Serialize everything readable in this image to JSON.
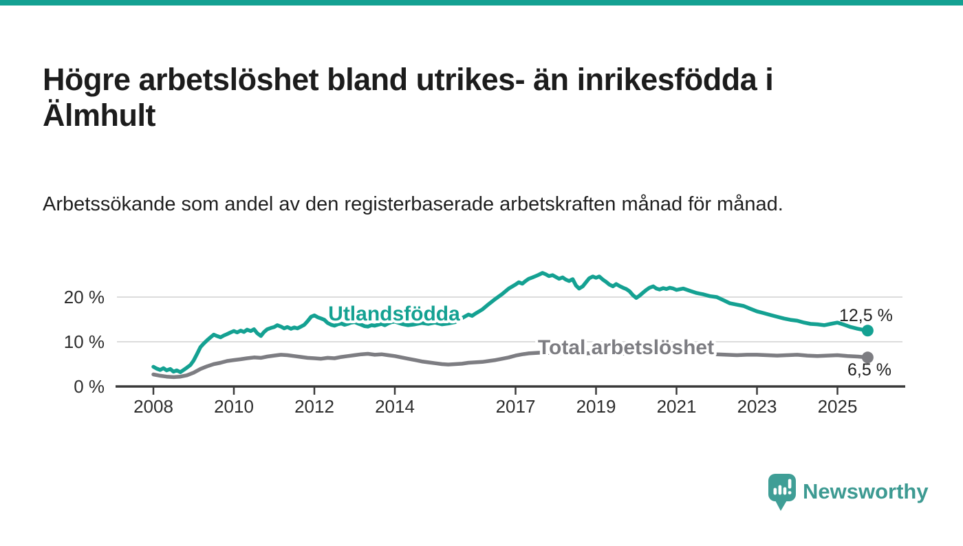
{
  "page": {
    "title": "Högre arbetslöshet bland utrikes- än inrikesfödda i Älmhult",
    "subtitle": "Arbetssökande som andel av den registerbaserade arbetskraften månad för månad."
  },
  "branding": {
    "logo_text": "Newsworthy",
    "logo_icon": "speech-bubble-bar-chart"
  },
  "colors": {
    "accent_teal": "#14a192",
    "series_foreign_born": "#14a192",
    "series_total": "#7d7d82",
    "logo_teal": "#3f9e96",
    "grid": "#dcdcdc",
    "axis": "#3a3a3a"
  },
  "chart_data": {
    "type": "line",
    "title": "Högre arbetslöshet bland utrikes- än inrikesfödda i Älmhult",
    "subtitle": "Arbetssökande som andel av den registerbaserade arbetskraften månad för månad.",
    "xlabel": "",
    "ylabel": "",
    "unit": "%",
    "grid": true,
    "x_axis": {
      "ticks": [
        2008,
        2010,
        2012,
        2014,
        2017,
        2019,
        2021,
        2023,
        2025
      ],
      "range": [
        2007.9,
        2026.5
      ]
    },
    "y_axis": {
      "ticks": [
        0,
        10,
        20
      ],
      "tick_labels": [
        "0 %",
        "10 %",
        "20 %"
      ],
      "range": [
        0,
        27
      ]
    },
    "series": [
      {
        "name": "Utlandsfödda",
        "color": "#14a192",
        "end_value": 12.5,
        "end_label": "12,5 %",
        "points": [
          [
            2008.0,
            4.4
          ],
          [
            2008.08,
            4.0
          ],
          [
            2008.17,
            3.7
          ],
          [
            2008.25,
            4.1
          ],
          [
            2008.33,
            3.6
          ],
          [
            2008.42,
            3.9
          ],
          [
            2008.5,
            3.3
          ],
          [
            2008.58,
            3.6
          ],
          [
            2008.67,
            3.2
          ],
          [
            2008.75,
            3.7
          ],
          [
            2008.83,
            4.2
          ],
          [
            2008.92,
            4.8
          ],
          [
            2009.0,
            5.8
          ],
          [
            2009.08,
            7.2
          ],
          [
            2009.17,
            8.8
          ],
          [
            2009.25,
            9.6
          ],
          [
            2009.33,
            10.3
          ],
          [
            2009.42,
            11.0
          ],
          [
            2009.5,
            11.6
          ],
          [
            2009.58,
            11.3
          ],
          [
            2009.67,
            11.0
          ],
          [
            2009.75,
            11.4
          ],
          [
            2009.83,
            11.7
          ],
          [
            2009.92,
            12.1
          ],
          [
            2010.0,
            12.4
          ],
          [
            2010.08,
            12.1
          ],
          [
            2010.17,
            12.5
          ],
          [
            2010.25,
            12.2
          ],
          [
            2010.33,
            12.7
          ],
          [
            2010.42,
            12.4
          ],
          [
            2010.5,
            12.8
          ],
          [
            2010.58,
            11.9
          ],
          [
            2010.67,
            11.3
          ],
          [
            2010.75,
            12.2
          ],
          [
            2010.83,
            12.8
          ],
          [
            2010.92,
            13.1
          ],
          [
            2011.0,
            13.3
          ],
          [
            2011.08,
            13.7
          ],
          [
            2011.17,
            13.4
          ],
          [
            2011.25,
            13.0
          ],
          [
            2011.33,
            13.3
          ],
          [
            2011.42,
            12.9
          ],
          [
            2011.5,
            13.2
          ],
          [
            2011.58,
            13.0
          ],
          [
            2011.67,
            13.4
          ],
          [
            2011.75,
            13.8
          ],
          [
            2011.83,
            14.6
          ],
          [
            2011.92,
            15.6
          ],
          [
            2012.0,
            15.9
          ],
          [
            2012.08,
            15.5
          ],
          [
            2012.17,
            15.2
          ],
          [
            2012.25,
            14.9
          ],
          [
            2012.33,
            14.2
          ],
          [
            2012.42,
            13.8
          ],
          [
            2012.5,
            13.6
          ],
          [
            2012.58,
            13.9
          ],
          [
            2012.67,
            14.1
          ],
          [
            2012.75,
            13.8
          ],
          [
            2012.83,
            14.0
          ],
          [
            2012.92,
            14.3
          ],
          [
            2013.0,
            14.4
          ],
          [
            2013.08,
            14.1
          ],
          [
            2013.17,
            13.8
          ],
          [
            2013.25,
            13.5
          ],
          [
            2013.33,
            13.4
          ],
          [
            2013.42,
            13.7
          ],
          [
            2013.5,
            13.6
          ],
          [
            2013.58,
            13.8
          ],
          [
            2013.67,
            14.0
          ],
          [
            2013.75,
            13.7
          ],
          [
            2013.83,
            14.1
          ],
          [
            2013.92,
            14.4
          ],
          [
            2014.0,
            14.5
          ],
          [
            2014.17,
            14.0
          ],
          [
            2014.33,
            13.7
          ],
          [
            2014.5,
            13.9
          ],
          [
            2014.67,
            14.2
          ],
          [
            2014.83,
            14.0
          ],
          [
            2015.0,
            14.3
          ],
          [
            2015.17,
            13.9
          ],
          [
            2015.33,
            14.1
          ],
          [
            2015.5,
            14.4
          ],
          [
            2015.67,
            15.3
          ],
          [
            2015.83,
            16.1
          ],
          [
            2015.92,
            15.8
          ],
          [
            2016.0,
            16.3
          ],
          [
            2016.17,
            17.2
          ],
          [
            2016.33,
            18.4
          ],
          [
            2016.5,
            19.6
          ],
          [
            2016.67,
            20.7
          ],
          [
            2016.83,
            21.9
          ],
          [
            2017.0,
            22.8
          ],
          [
            2017.08,
            23.3
          ],
          [
            2017.17,
            23.0
          ],
          [
            2017.25,
            23.6
          ],
          [
            2017.33,
            24.1
          ],
          [
            2017.42,
            24.4
          ],
          [
            2017.5,
            24.7
          ],
          [
            2017.58,
            25.0
          ],
          [
            2017.67,
            25.4
          ],
          [
            2017.75,
            25.1
          ],
          [
            2017.83,
            24.7
          ],
          [
            2017.92,
            24.9
          ],
          [
            2018.0,
            24.5
          ],
          [
            2018.08,
            24.1
          ],
          [
            2018.17,
            24.4
          ],
          [
            2018.25,
            23.9
          ],
          [
            2018.33,
            23.6
          ],
          [
            2018.42,
            24.0
          ],
          [
            2018.5,
            22.6
          ],
          [
            2018.58,
            21.9
          ],
          [
            2018.67,
            22.4
          ],
          [
            2018.75,
            23.3
          ],
          [
            2018.83,
            24.2
          ],
          [
            2018.92,
            24.6
          ],
          [
            2019.0,
            24.3
          ],
          [
            2019.08,
            24.6
          ],
          [
            2019.17,
            23.9
          ],
          [
            2019.25,
            23.4
          ],
          [
            2019.33,
            22.8
          ],
          [
            2019.42,
            22.4
          ],
          [
            2019.5,
            22.9
          ],
          [
            2019.58,
            22.5
          ],
          [
            2019.67,
            22.1
          ],
          [
            2019.75,
            21.8
          ],
          [
            2019.83,
            21.3
          ],
          [
            2019.92,
            20.4
          ],
          [
            2020.0,
            19.8
          ],
          [
            2020.08,
            20.3
          ],
          [
            2020.17,
            21.0
          ],
          [
            2020.25,
            21.6
          ],
          [
            2020.33,
            22.1
          ],
          [
            2020.42,
            22.4
          ],
          [
            2020.5,
            21.9
          ],
          [
            2020.58,
            21.7
          ],
          [
            2020.67,
            22.0
          ],
          [
            2020.75,
            21.8
          ],
          [
            2020.83,
            22.1
          ],
          [
            2020.92,
            21.9
          ],
          [
            2021.0,
            21.6
          ],
          [
            2021.17,
            21.9
          ],
          [
            2021.33,
            21.4
          ],
          [
            2021.5,
            20.9
          ],
          [
            2021.67,
            20.6
          ],
          [
            2021.83,
            20.2
          ],
          [
            2022.0,
            20.0
          ],
          [
            2022.17,
            19.3
          ],
          [
            2022.33,
            18.6
          ],
          [
            2022.5,
            18.3
          ],
          [
            2022.67,
            18.0
          ],
          [
            2022.83,
            17.4
          ],
          [
            2023.0,
            16.8
          ],
          [
            2023.17,
            16.4
          ],
          [
            2023.33,
            16.0
          ],
          [
            2023.5,
            15.6
          ],
          [
            2023.67,
            15.2
          ],
          [
            2023.83,
            14.9
          ],
          [
            2024.0,
            14.7
          ],
          [
            2024.17,
            14.3
          ],
          [
            2024.33,
            14.0
          ],
          [
            2024.5,
            13.9
          ],
          [
            2024.67,
            13.7
          ],
          [
            2024.83,
            14.0
          ],
          [
            2025.0,
            14.3
          ],
          [
            2025.17,
            13.8
          ],
          [
            2025.33,
            13.3
          ],
          [
            2025.5,
            12.9
          ],
          [
            2025.67,
            12.6
          ],
          [
            2025.75,
            12.5
          ]
        ]
      },
      {
        "name": "Total arbetslöshet",
        "color": "#7d7d82",
        "end_value": 6.5,
        "end_label": "6,5 %",
        "points": [
          [
            2008.0,
            2.7
          ],
          [
            2008.17,
            2.4
          ],
          [
            2008.33,
            2.2
          ],
          [
            2008.5,
            2.1
          ],
          [
            2008.67,
            2.2
          ],
          [
            2008.83,
            2.5
          ],
          [
            2009.0,
            3.1
          ],
          [
            2009.17,
            3.9
          ],
          [
            2009.33,
            4.5
          ],
          [
            2009.5,
            5.0
          ],
          [
            2009.67,
            5.3
          ],
          [
            2009.83,
            5.7
          ],
          [
            2010.0,
            5.9
          ],
          [
            2010.17,
            6.1
          ],
          [
            2010.33,
            6.3
          ],
          [
            2010.5,
            6.5
          ],
          [
            2010.67,
            6.4
          ],
          [
            2010.83,
            6.7
          ],
          [
            2011.0,
            6.9
          ],
          [
            2011.17,
            7.1
          ],
          [
            2011.33,
            7.0
          ],
          [
            2011.5,
            6.8
          ],
          [
            2011.67,
            6.6
          ],
          [
            2011.83,
            6.4
          ],
          [
            2012.0,
            6.3
          ],
          [
            2012.17,
            6.2
          ],
          [
            2012.33,
            6.4
          ],
          [
            2012.5,
            6.3
          ],
          [
            2012.67,
            6.6
          ],
          [
            2012.83,
            6.8
          ],
          [
            2013.0,
            7.0
          ],
          [
            2013.17,
            7.2
          ],
          [
            2013.33,
            7.3
          ],
          [
            2013.5,
            7.1
          ],
          [
            2013.67,
            7.2
          ],
          [
            2013.83,
            7.0
          ],
          [
            2014.0,
            6.8
          ],
          [
            2014.17,
            6.5
          ],
          [
            2014.33,
            6.2
          ],
          [
            2014.5,
            5.9
          ],
          [
            2014.67,
            5.6
          ],
          [
            2014.83,
            5.4
          ],
          [
            2015.0,
            5.2
          ],
          [
            2015.17,
            5.0
          ],
          [
            2015.33,
            4.9
          ],
          [
            2015.5,
            5.0
          ],
          [
            2015.67,
            5.1
          ],
          [
            2015.83,
            5.3
          ],
          [
            2016.0,
            5.4
          ],
          [
            2016.17,
            5.5
          ],
          [
            2016.33,
            5.7
          ],
          [
            2016.5,
            5.9
          ],
          [
            2016.67,
            6.2
          ],
          [
            2016.83,
            6.5
          ],
          [
            2017.0,
            6.9
          ],
          [
            2017.17,
            7.2
          ],
          [
            2017.33,
            7.4
          ],
          [
            2017.5,
            7.5
          ],
          [
            2017.67,
            7.6
          ],
          [
            2017.83,
            7.5
          ],
          [
            2018.0,
            7.4
          ],
          [
            2018.25,
            7.5
          ],
          [
            2018.5,
            7.3
          ],
          [
            2018.75,
            7.4
          ],
          [
            2019.0,
            7.5
          ],
          [
            2019.25,
            7.4
          ],
          [
            2019.5,
            7.3
          ],
          [
            2019.75,
            7.4
          ],
          [
            2020.0,
            7.6
          ],
          [
            2020.25,
            8.2
          ],
          [
            2020.5,
            8.4
          ],
          [
            2020.75,
            8.2
          ],
          [
            2021.0,
            8.0
          ],
          [
            2021.25,
            7.8
          ],
          [
            2021.5,
            7.6
          ],
          [
            2021.75,
            7.4
          ],
          [
            2022.0,
            7.2
          ],
          [
            2022.25,
            7.1
          ],
          [
            2022.5,
            7.0
          ],
          [
            2022.75,
            7.1
          ],
          [
            2023.0,
            7.1
          ],
          [
            2023.25,
            7.0
          ],
          [
            2023.5,
            6.9
          ],
          [
            2023.75,
            7.0
          ],
          [
            2024.0,
            7.1
          ],
          [
            2024.25,
            6.9
          ],
          [
            2024.5,
            6.8
          ],
          [
            2024.75,
            6.9
          ],
          [
            2025.0,
            7.0
          ],
          [
            2025.25,
            6.8
          ],
          [
            2025.5,
            6.7
          ],
          [
            2025.75,
            6.5
          ]
        ]
      }
    ],
    "legend_position": "inline-labels"
  }
}
